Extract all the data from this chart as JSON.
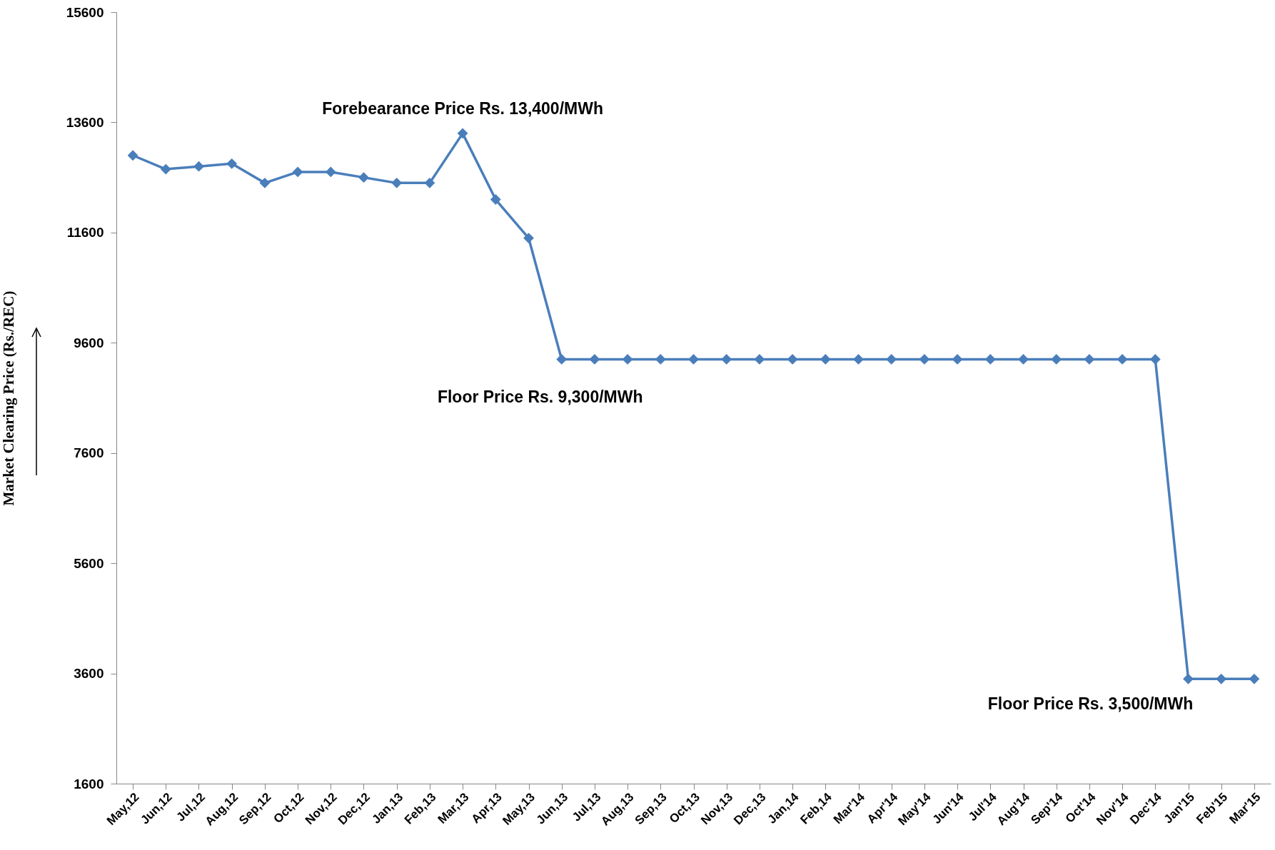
{
  "chart_data": {
    "type": "line",
    "ylabel": "Market Clearing Price (Rs./REC)",
    "categories": [
      "May,12",
      "Jun,12",
      "Jul,12",
      "Aug,12",
      "Sep,12",
      "Oct,12",
      "Nov,12",
      "Dec,12",
      "Jan,13",
      "Feb,13",
      "Mar,13",
      "Apr,13",
      "May,13",
      "Jun,13",
      "Jul,13",
      "Aug,13",
      "Sep,13",
      "Oct,13",
      "Nov,13",
      "Dec,13",
      "Jan,14",
      "Feb,14",
      "Mar'14",
      "Apr'14",
      "May'14",
      "Jun'14",
      "Jul'14",
      "Aug'14",
      "Sep'14",
      "Oct'14",
      "Nov'14",
      "Dec'14",
      "Jan'15",
      "Feb'15",
      "Mar'15"
    ],
    "series": [
      {
        "color": "#4a7ebb",
        "values": [
          13000,
          12750,
          12800,
          12850,
          12500,
          12700,
          12700,
          12600,
          12500,
          12500,
          13400,
          12200,
          11500,
          9300,
          9300,
          9300,
          9300,
          9300,
          9300,
          9300,
          9300,
          9300,
          9300,
          9300,
          9300,
          9300,
          9300,
          9300,
          9300,
          9300,
          9300,
          9300,
          3500,
          3500,
          3500
        ]
      }
    ],
    "ylim": [
      1600,
      15600
    ],
    "yticks": [
      1600,
      3600,
      5600,
      7600,
      9600,
      11600,
      13600,
      15600
    ],
    "grid": false,
    "marker": "diamond",
    "line_style": "solid",
    "annotations": [
      {
        "text": "Forebearance Price Rs. 13,400/MWh",
        "x": "Mar,13",
        "y": 13400
      },
      {
        "text": "Floor Price Rs. 9,300/MWh",
        "x": "Jun,13",
        "y": 9300
      },
      {
        "text": "Floor Price Rs. 3,500/MWh",
        "x": "Jan'15",
        "y": 3500
      }
    ]
  }
}
